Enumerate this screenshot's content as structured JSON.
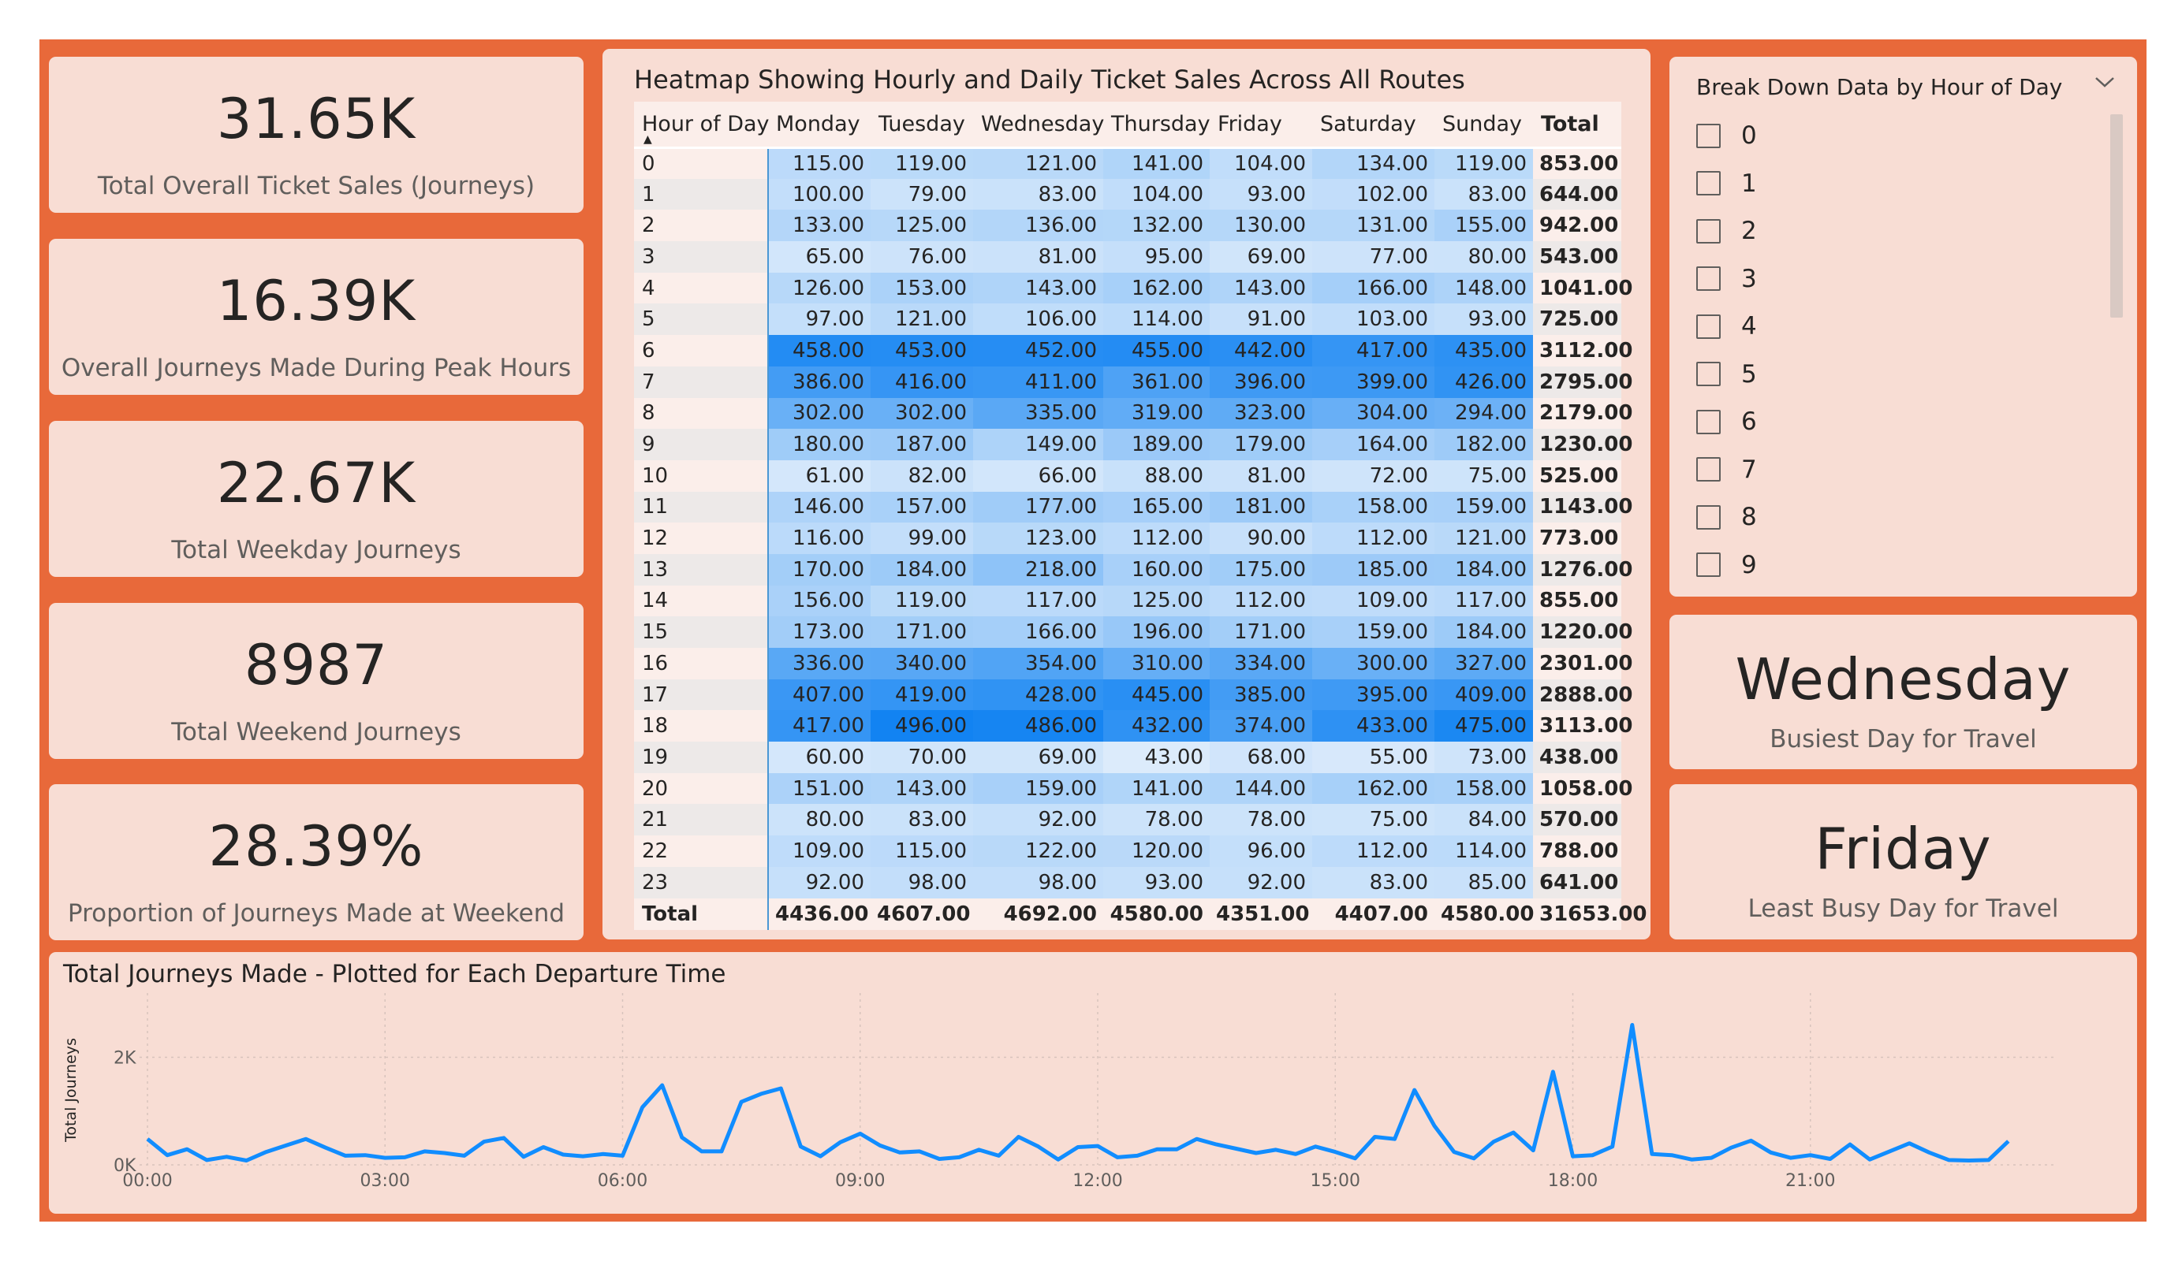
{
  "kpis": [
    {
      "value": "31.65K",
      "label": "Total Overall Ticket Sales (Journeys)"
    },
    {
      "value": "16.39K",
      "label": "Overall Journeys Made During Peak Hours"
    },
    {
      "value": "22.67K",
      "label": "Total Weekday Journeys"
    },
    {
      "value": "8987",
      "label": "Total Weekend Journeys"
    },
    {
      "value": "28.39%",
      "label": "Proportion of Journeys Made at Weekend"
    }
  ],
  "heatmap": {
    "title": "Heatmap Showing Hourly and Daily Ticket Sales Across All Routes",
    "row_header": "Hour of Day",
    "days": [
      "Monday",
      "Tuesday",
      "Wednesday",
      "Thursday",
      "Friday",
      "Saturday",
      "Sunday"
    ],
    "total_header": "Total",
    "total_row_label": "Total",
    "max_color": "#1283F2",
    "min_color": "#DCEBFB",
    "rows": [
      {
        "hour": "0",
        "values": [
          "115.00",
          "119.00",
          "121.00",
          "141.00",
          "104.00",
          "134.00",
          "119.00"
        ],
        "total": "853.00"
      },
      {
        "hour": "1",
        "values": [
          "100.00",
          "79.00",
          "83.00",
          "104.00",
          "93.00",
          "102.00",
          "83.00"
        ],
        "total": "644.00"
      },
      {
        "hour": "2",
        "values": [
          "133.00",
          "125.00",
          "136.00",
          "132.00",
          "130.00",
          "131.00",
          "155.00"
        ],
        "total": "942.00"
      },
      {
        "hour": "3",
        "values": [
          "65.00",
          "76.00",
          "81.00",
          "95.00",
          "69.00",
          "77.00",
          "80.00"
        ],
        "total": "543.00"
      },
      {
        "hour": "4",
        "values": [
          "126.00",
          "153.00",
          "143.00",
          "162.00",
          "143.00",
          "166.00",
          "148.00"
        ],
        "total": "1041.00"
      },
      {
        "hour": "5",
        "values": [
          "97.00",
          "121.00",
          "106.00",
          "114.00",
          "91.00",
          "103.00",
          "93.00"
        ],
        "total": "725.00"
      },
      {
        "hour": "6",
        "values": [
          "458.00",
          "453.00",
          "452.00",
          "455.00",
          "442.00",
          "417.00",
          "435.00"
        ],
        "total": "3112.00"
      },
      {
        "hour": "7",
        "values": [
          "386.00",
          "416.00",
          "411.00",
          "361.00",
          "396.00",
          "399.00",
          "426.00"
        ],
        "total": "2795.00"
      },
      {
        "hour": "8",
        "values": [
          "302.00",
          "302.00",
          "335.00",
          "319.00",
          "323.00",
          "304.00",
          "294.00"
        ],
        "total": "2179.00"
      },
      {
        "hour": "9",
        "values": [
          "180.00",
          "187.00",
          "149.00",
          "189.00",
          "179.00",
          "164.00",
          "182.00"
        ],
        "total": "1230.00"
      },
      {
        "hour": "10",
        "values": [
          "61.00",
          "82.00",
          "66.00",
          "88.00",
          "81.00",
          "72.00",
          "75.00"
        ],
        "total": "525.00"
      },
      {
        "hour": "11",
        "values": [
          "146.00",
          "157.00",
          "177.00",
          "165.00",
          "181.00",
          "158.00",
          "159.00"
        ],
        "total": "1143.00"
      },
      {
        "hour": "12",
        "values": [
          "116.00",
          "99.00",
          "123.00",
          "112.00",
          "90.00",
          "112.00",
          "121.00"
        ],
        "total": "773.00"
      },
      {
        "hour": "13",
        "values": [
          "170.00",
          "184.00",
          "218.00",
          "160.00",
          "175.00",
          "185.00",
          "184.00"
        ],
        "total": "1276.00"
      },
      {
        "hour": "14",
        "values": [
          "156.00",
          "119.00",
          "117.00",
          "125.00",
          "112.00",
          "109.00",
          "117.00"
        ],
        "total": "855.00"
      },
      {
        "hour": "15",
        "values": [
          "173.00",
          "171.00",
          "166.00",
          "196.00",
          "171.00",
          "159.00",
          "184.00"
        ],
        "total": "1220.00"
      },
      {
        "hour": "16",
        "values": [
          "336.00",
          "340.00",
          "354.00",
          "310.00",
          "334.00",
          "300.00",
          "327.00"
        ],
        "total": "2301.00"
      },
      {
        "hour": "17",
        "values": [
          "407.00",
          "419.00",
          "428.00",
          "445.00",
          "385.00",
          "395.00",
          "409.00"
        ],
        "total": "2888.00"
      },
      {
        "hour": "18",
        "values": [
          "417.00",
          "496.00",
          "486.00",
          "432.00",
          "374.00",
          "433.00",
          "475.00"
        ],
        "total": "3113.00"
      },
      {
        "hour": "19",
        "values": [
          "60.00",
          "70.00",
          "69.00",
          "43.00",
          "68.00",
          "55.00",
          "73.00"
        ],
        "total": "438.00"
      },
      {
        "hour": "20",
        "values": [
          "151.00",
          "143.00",
          "159.00",
          "141.00",
          "144.00",
          "162.00",
          "158.00"
        ],
        "total": "1058.00"
      },
      {
        "hour": "21",
        "values": [
          "80.00",
          "83.00",
          "92.00",
          "78.00",
          "78.00",
          "75.00",
          "84.00"
        ],
        "total": "570.00"
      },
      {
        "hour": "22",
        "values": [
          "109.00",
          "115.00",
          "122.00",
          "120.00",
          "96.00",
          "112.00",
          "114.00"
        ],
        "total": "788.00"
      },
      {
        "hour": "23",
        "values": [
          "92.00",
          "98.00",
          "98.00",
          "93.00",
          "92.00",
          "83.00",
          "85.00"
        ],
        "total": "641.00"
      }
    ],
    "totals": [
      "4436.00",
      "4607.00",
      "4692.00",
      "4580.00",
      "4351.00",
      "4407.00",
      "4580.00"
    ],
    "grand_total": "31653.00"
  },
  "slicer": {
    "title": "Break Down Data by Hour of Day",
    "icon": "chevron-down-icon",
    "items": [
      "0",
      "1",
      "2",
      "3",
      "4",
      "5",
      "6",
      "7",
      "8",
      "9"
    ]
  },
  "busiest": {
    "value": "Wednesday",
    "label": "Busiest Day for Travel"
  },
  "least_busy": {
    "value": "Friday",
    "label": "Least Busy Day for Travel"
  },
  "line_chart": {
    "title": "Total Journeys Made - Plotted for Each Departure Time"
  },
  "chart_data": {
    "type": "line",
    "ylabel": "Total Journeys",
    "yticks": [
      {
        "value": 0,
        "label": "0K"
      },
      {
        "value": 2000,
        "label": "2K"
      }
    ],
    "ylim": [
      0,
      2900
    ],
    "xlim": [
      0,
      1440
    ],
    "xticks": [
      {
        "value": 0,
        "label": "00:00"
      },
      {
        "value": 180,
        "label": "03:00"
      },
      {
        "value": 360,
        "label": "06:00"
      },
      {
        "value": 540,
        "label": "09:00"
      },
      {
        "value": 720,
        "label": "12:00"
      },
      {
        "value": 900,
        "label": "15:00"
      },
      {
        "value": 1080,
        "label": "18:00"
      },
      {
        "value": 1260,
        "label": "21:00"
      }
    ],
    "grid": true,
    "color": "#118DFF",
    "series": [
      {
        "x": [
          0,
          15,
          30,
          45,
          60,
          75,
          90,
          105,
          120,
          135,
          150,
          165,
          180,
          195,
          210,
          225,
          240,
          255,
          270,
          285,
          300,
          315,
          330,
          345,
          360,
          375,
          390,
          405,
          420,
          435,
          450,
          465,
          480,
          495,
          510,
          525,
          540,
          555,
          570,
          585,
          600,
          615,
          630,
          645,
          660,
          675,
          690,
          705,
          720,
          735,
          750,
          765,
          780,
          795,
          810,
          825,
          840,
          855,
          870,
          885,
          900,
          915,
          930,
          945,
          960,
          975,
          990,
          1005,
          1020,
          1035,
          1050,
          1065,
          1080,
          1095,
          1110,
          1125,
          1140,
          1155,
          1170,
          1185,
          1200,
          1215,
          1230,
          1245,
          1260,
          1275,
          1290,
          1305,
          1320,
          1335,
          1350,
          1365,
          1380,
          1395,
          1410
        ],
        "y": [
          480,
          180,
          290,
          90,
          150,
          80,
          240,
          360,
          480,
          320,
          170,
          180,
          130,
          140,
          250,
          220,
          170,
          430,
          500,
          150,
          330,
          190,
          160,
          200,
          170,
          1070,
          1480,
          510,
          250,
          250,
          1170,
          1320,
          1420,
          340,
          160,
          420,
          580,
          360,
          230,
          250,
          110,
          140,
          280,
          170,
          520,
          340,
          100,
          330,
          350,
          140,
          170,
          290,
          290,
          480,
          380,
          300,
          220,
          280,
          200,
          340,
          240,
          120,
          520,
          480,
          1390,
          730,
          240,
          120,
          430,
          600,
          270,
          1730,
          160,
          180,
          340,
          2600,
          200,
          180,
          100,
          130,
          320,
          450,
          230,
          130,
          180,
          110,
          380,
          100,
          250,
          400,
          230,
          90,
          80,
          90,
          440
        ]
      }
    ]
  }
}
